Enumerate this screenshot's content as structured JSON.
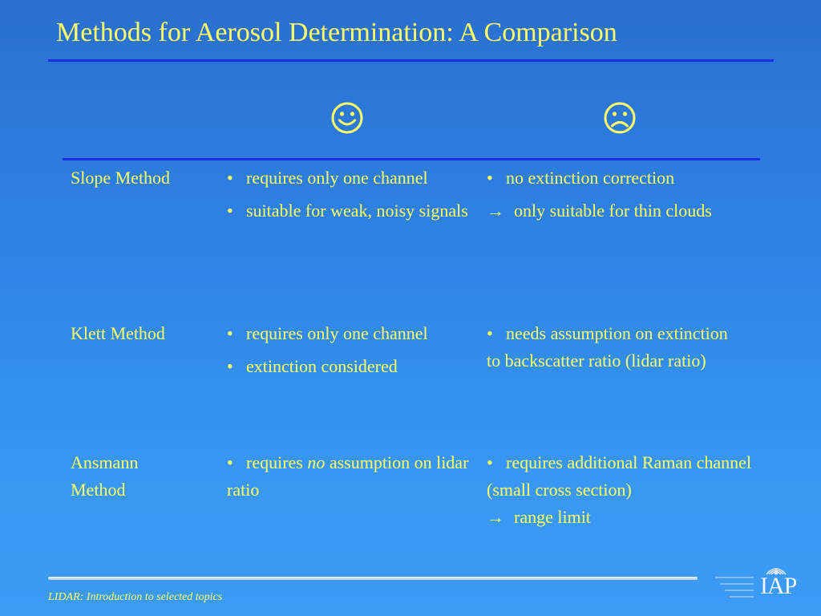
{
  "title": "Methods for Aerosol Determination: A Comparison",
  "header": {
    "pro_icon": "smiley-face-icon",
    "con_icon": "frowning-face-icon"
  },
  "rows": [
    {
      "method": "Slope Method",
      "pros": [
        {
          "marker": "•",
          "text": "requires only one channel"
        },
        {
          "marker": "•",
          "text": "suitable for weak, noisy signals"
        }
      ],
      "cons": [
        {
          "marker": "•",
          "text": "no extinction correction"
        },
        {
          "marker": "→",
          "text": "only suitable for thin clouds"
        }
      ]
    },
    {
      "method": "Klett Method",
      "pros": [
        {
          "marker": "•",
          "text": "requires only one channel"
        },
        {
          "marker": "•",
          "text": "extinction considered"
        }
      ],
      "cons": [
        {
          "marker": "•",
          "text": "needs assumption on extinction to backscatter ratio (lidar ratio)"
        }
      ]
    },
    {
      "method": "Ansmann Method",
      "pros": [
        {
          "marker": "•",
          "text_before": "requires",
          "emphasis": "no",
          "text_after": "assumption on lidar ratio"
        }
      ],
      "cons": [
        {
          "marker": "•",
          "text": "requires additional Raman channel (small cross section)"
        },
        {
          "marker": "→",
          "text": "range limit"
        }
      ]
    }
  ],
  "footer": {
    "text": "LIDAR: Introduction to selected topics",
    "logo_letters": "IAP",
    "logo_icon": "institute-logo-icon"
  },
  "colors": {
    "text": "#ffff66",
    "rule": "#1a2ee6",
    "background_top": "#2a6fcf",
    "background_bottom": "#3b9bf5"
  }
}
